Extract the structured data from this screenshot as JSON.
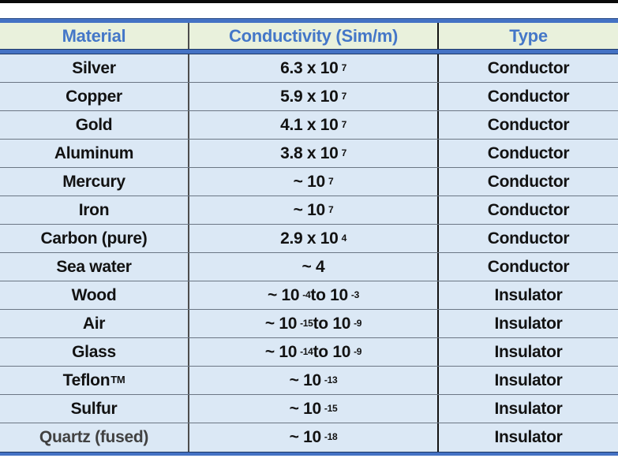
{
  "colors": {
    "top_rule": "#0a0a0a",
    "header_bg": "#e9f1dc",
    "header_text": "#4477c8",
    "row_bg": "#dbe8f5",
    "row_text": "#121212",
    "muted_row_text": "#414141",
    "accent_border": "#4472c4",
    "dark_border": "#1f3864",
    "column_divider_1": "#4d4d4d",
    "column_divider_2": "#111111",
    "row_separator": "#6b7684"
  },
  "table": {
    "muted_row_index": 13
  },
  "chart_data": {
    "type": "table",
    "title": "",
    "notation": "caret (^) marks a superscript segment ending at the next space",
    "columns": [
      "Material",
      "Conductivity (Sim/m)",
      "Type"
    ],
    "rows": [
      [
        "Silver",
        "6.3 x 10^7",
        "Conductor"
      ],
      [
        "Copper",
        "5.9 x 10^7",
        "Conductor"
      ],
      [
        "Gold",
        "4.1 x 10^7",
        "Conductor"
      ],
      [
        "Aluminum",
        "3.8 x 10^7",
        "Conductor"
      ],
      [
        "Mercury",
        "~ 10^7",
        "Conductor"
      ],
      [
        "Iron",
        "~ 10^7",
        "Conductor"
      ],
      [
        "Carbon (pure)",
        "2.9 x 10^4",
        "Conductor"
      ],
      [
        "Sea water",
        "~ 4",
        "Conductor"
      ],
      [
        "Wood",
        "~ 10^-4 to 10^-3",
        "Insulator"
      ],
      [
        "Air",
        "~ 10^-15 to 10^-9",
        "Insulator"
      ],
      [
        "Glass",
        "~ 10^-14 to 10^-9",
        "Insulator"
      ],
      [
        "Teflon^TM",
        "~ 10^-13",
        "Insulator"
      ],
      [
        "Sulfur",
        "~ 10^-15",
        "Insulator"
      ],
      [
        "Quartz (fused)",
        "~ 10^-18",
        "Insulator"
      ]
    ]
  }
}
